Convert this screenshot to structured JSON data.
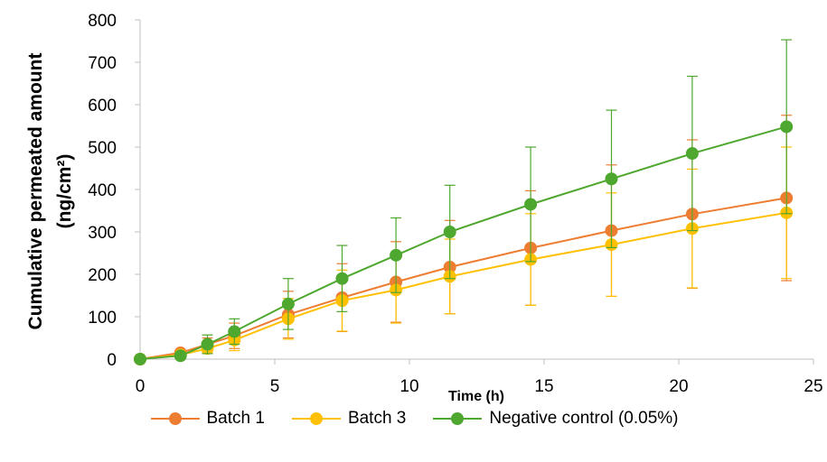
{
  "chart_data": {
    "type": "line",
    "title": "",
    "xlabel": "Time (h)",
    "ylabel_line1": "Cumulative permeated amount",
    "ylabel_line2": "(ng/cm²)",
    "xlim": [
      0,
      25
    ],
    "ylim": [
      0,
      800
    ],
    "xticks": [
      0,
      5,
      10,
      15,
      20,
      25
    ],
    "yticks": [
      0,
      100,
      200,
      300,
      400,
      500,
      600,
      700,
      800
    ],
    "grid": false,
    "legend_position": "bottom",
    "series": [
      {
        "name": "Batch 1",
        "color": "#ED7D31",
        "x": [
          0,
          1.5,
          2.5,
          3.5,
          5.5,
          7.5,
          9.5,
          11.5,
          14.5,
          17.5,
          20.5,
          24
        ],
        "y": [
          0,
          15,
          35,
          55,
          105,
          145,
          182,
          217,
          262,
          303,
          342,
          380
        ],
        "err": [
          0,
          5,
          15,
          30,
          55,
          80,
          95,
          110,
          135,
          155,
          175,
          195
        ]
      },
      {
        "name": "Batch 3",
        "color": "#FFC000",
        "x": [
          0,
          1.5,
          2.5,
          3.5,
          5.5,
          7.5,
          9.5,
          11.5,
          14.5,
          17.5,
          20.5,
          24
        ],
        "y": [
          0,
          10,
          25,
          45,
          95,
          138,
          163,
          195,
          235,
          270,
          308,
          345
        ],
        "err": [
          0,
          5,
          10,
          25,
          48,
          72,
          78,
          88,
          108,
          122,
          140,
          155
        ]
      },
      {
        "name": "Negative control (0.05%)",
        "color": "#4EA72E",
        "x": [
          0,
          1.5,
          2.5,
          3.5,
          5.5,
          7.5,
          9.5,
          11.5,
          14.5,
          17.5,
          20.5,
          24
        ],
        "y": [
          0,
          8,
          35,
          65,
          130,
          190,
          245,
          300,
          365,
          425,
          485,
          548
        ],
        "err": [
          0,
          5,
          22,
          30,
          60,
          78,
          88,
          110,
          135,
          162,
          182,
          205
        ]
      }
    ]
  }
}
